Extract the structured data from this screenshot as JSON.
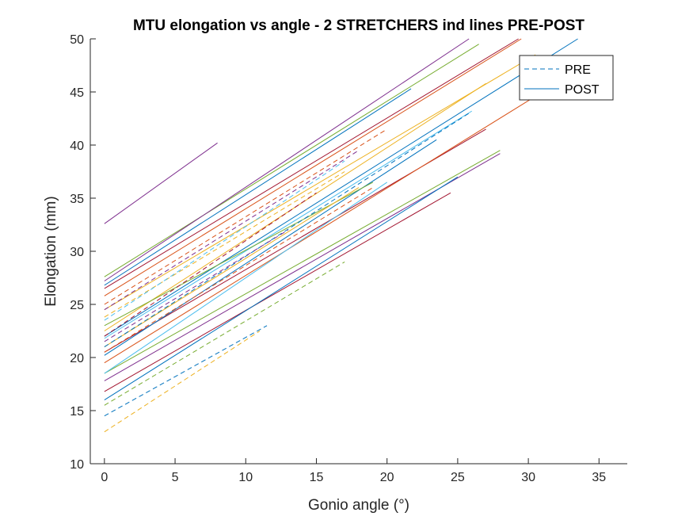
{
  "chart_data": {
    "type": "line",
    "title": "MTU elongation vs angle - 2 STRETCHERS ind lines PRE-POST",
    "xlabel": "Gonio angle (°)",
    "ylabel": "Elongation (mm)",
    "xlim": [
      -1,
      37
    ],
    "ylim": [
      10,
      50
    ],
    "xticks": [
      0,
      5,
      10,
      15,
      20,
      25,
      30,
      35
    ],
    "yticks": [
      10,
      15,
      20,
      25,
      30,
      35,
      40,
      45,
      50
    ],
    "grid": false,
    "legend": {
      "position": "top-right",
      "entries": [
        {
          "label": "PRE",
          "style": "dashed"
        },
        {
          "label": "POST",
          "style": "solid"
        }
      ]
    },
    "colors": [
      "#0072BD",
      "#D95319",
      "#EDB120",
      "#7E2F8E",
      "#77AC30",
      "#4DBEEE",
      "#A2142F"
    ],
    "series": [
      {
        "group": "POST",
        "color": "#7E2F8E",
        "x": [
          0,
          8
        ],
        "y": [
          32.6,
          40.2
        ]
      },
      {
        "group": "POST",
        "color": "#77AC30",
        "x": [
          0,
          26.5
        ],
        "y": [
          27.6,
          49.5
        ]
      },
      {
        "group": "POST",
        "color": "#7E2F8E",
        "x": [
          0,
          25.8
        ],
        "y": [
          27.2,
          50
        ]
      },
      {
        "group": "POST",
        "color": "#A2142F",
        "x": [
          0,
          29.3
        ],
        "y": [
          26.5,
          50
        ]
      },
      {
        "group": "POST",
        "color": "#0072BD",
        "x": [
          0,
          21.7
        ],
        "y": [
          26.8,
          45.3
        ]
      },
      {
        "group": "POST",
        "color": "#D95319",
        "x": [
          0,
          29.5
        ],
        "y": [
          25.8,
          50
        ]
      },
      {
        "group": "POST",
        "color": "#EDB120",
        "x": [
          0,
          30.5
        ],
        "y": [
          24.5,
          48.5
        ]
      },
      {
        "group": "POST",
        "color": "#0072BD",
        "x": [
          0,
          33.5
        ],
        "y": [
          22.0,
          50
        ]
      },
      {
        "group": "POST",
        "color": "#EDB120",
        "x": [
          0,
          27
        ],
        "y": [
          22.5,
          45.8
        ]
      },
      {
        "group": "POST",
        "color": "#4DBEEE",
        "x": [
          0,
          26
        ],
        "y": [
          21.8,
          43.2
        ]
      },
      {
        "group": "POST",
        "color": "#A2142F",
        "x": [
          0,
          27
        ],
        "y": [
          20.5,
          41.5
        ]
      },
      {
        "group": "POST",
        "color": "#D95319",
        "x": [
          0,
          31
        ],
        "y": [
          19.5,
          45
        ]
      },
      {
        "group": "POST",
        "color": "#0072BD",
        "x": [
          0,
          23.5
        ],
        "y": [
          20.2,
          40.5
        ]
      },
      {
        "group": "POST",
        "color": "#77AC30",
        "x": [
          0,
          28
        ],
        "y": [
          18.5,
          39.5
        ]
      },
      {
        "group": "POST",
        "color": "#7E2F8E",
        "x": [
          0,
          28
        ],
        "y": [
          17.8,
          39.2
        ]
      },
      {
        "group": "POST",
        "color": "#A2142F",
        "x": [
          0,
          24.5
        ],
        "y": [
          16.8,
          35.5
        ]
      },
      {
        "group": "POST",
        "color": "#0072BD",
        "x": [
          0,
          25
        ],
        "y": [
          16.0,
          37.0
        ]
      },
      {
        "group": "POST",
        "color": "#77AC30",
        "x": [
          0,
          19
        ],
        "y": [
          23.0,
          36.5
        ]
      },
      {
        "group": "POST",
        "color": "#4DBEEE",
        "x": [
          0,
          20
        ],
        "y": [
          18.5,
          36.5
        ]
      },
      {
        "group": "POST",
        "color": "#EDB120",
        "x": [
          0,
          18
        ],
        "y": [
          21.0,
          36.0
        ]
      },
      {
        "group": "PRE",
        "color": "#D95319",
        "x": [
          0,
          20
        ],
        "y": [
          25.0,
          41.5
        ]
      },
      {
        "group": "PRE",
        "color": "#7E2F8E",
        "x": [
          0,
          18
        ],
        "y": [
          24.5,
          39.5
        ]
      },
      {
        "group": "PRE",
        "color": "#EDB120",
        "x": [
          0,
          17
        ],
        "y": [
          23.8,
          37.5
        ]
      },
      {
        "group": "PRE",
        "color": "#0072BD",
        "x": [
          0,
          25.8
        ],
        "y": [
          21.0,
          43.0
        ]
      },
      {
        "group": "PRE",
        "color": "#4DBEEE",
        "x": [
          0,
          17
        ],
        "y": [
          23.5,
          38.5
        ]
      },
      {
        "group": "PRE",
        "color": "#A2142F",
        "x": [
          0,
          15
        ],
        "y": [
          22.0,
          35.5
        ]
      },
      {
        "group": "PRE",
        "color": "#D95319",
        "x": [
          0,
          19
        ],
        "y": [
          20.5,
          36.0
        ]
      },
      {
        "group": "PRE",
        "color": "#0072BD",
        "x": [
          0,
          11.5
        ],
        "y": [
          14.5,
          23.0
        ]
      },
      {
        "group": "PRE",
        "color": "#77AC30",
        "x": [
          0,
          17
        ],
        "y": [
          15.5,
          29.0
        ]
      },
      {
        "group": "PRE",
        "color": "#EDB120",
        "x": [
          0,
          11
        ],
        "y": [
          13.0,
          22.5
        ]
      },
      {
        "group": "PRE",
        "color": "#7E2F8E",
        "x": [
          0,
          13
        ],
        "y": [
          21.5,
          32.0
        ]
      }
    ]
  }
}
